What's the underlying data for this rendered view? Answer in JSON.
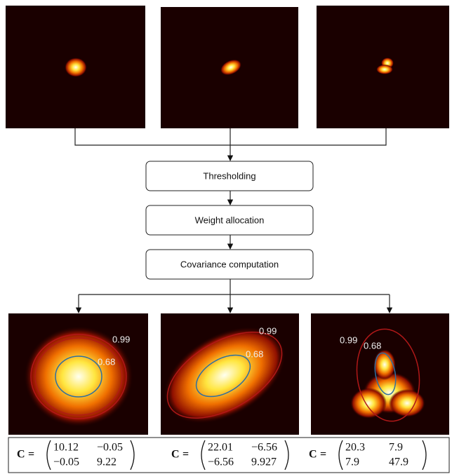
{
  "steps": [
    "Thresholding",
    "Weight allocation",
    "Covariance computation"
  ],
  "panels": [
    {
      "outer_label": "0.99",
      "inner_label": "0.68"
    },
    {
      "outer_label": "0.99",
      "inner_label": "0.68"
    },
    {
      "outer_label": "0.99",
      "inner_label": "0.68"
    }
  ],
  "matrices": [
    {
      "symbol": "C",
      "equals": "=",
      "rows": [
        [
          "10.12",
          "−0.05"
        ],
        [
          "−0.05",
          "9.22"
        ]
      ]
    },
    {
      "symbol": "C",
      "equals": "=",
      "rows": [
        [
          "22.01",
          "−6.56"
        ],
        [
          "−6.56",
          "9.927"
        ]
      ]
    },
    {
      "symbol": "C",
      "equals": "=",
      "rows": [
        [
          "20.3",
          "7.9"
        ],
        [
          "7.9",
          "47.9"
        ]
      ]
    }
  ]
}
